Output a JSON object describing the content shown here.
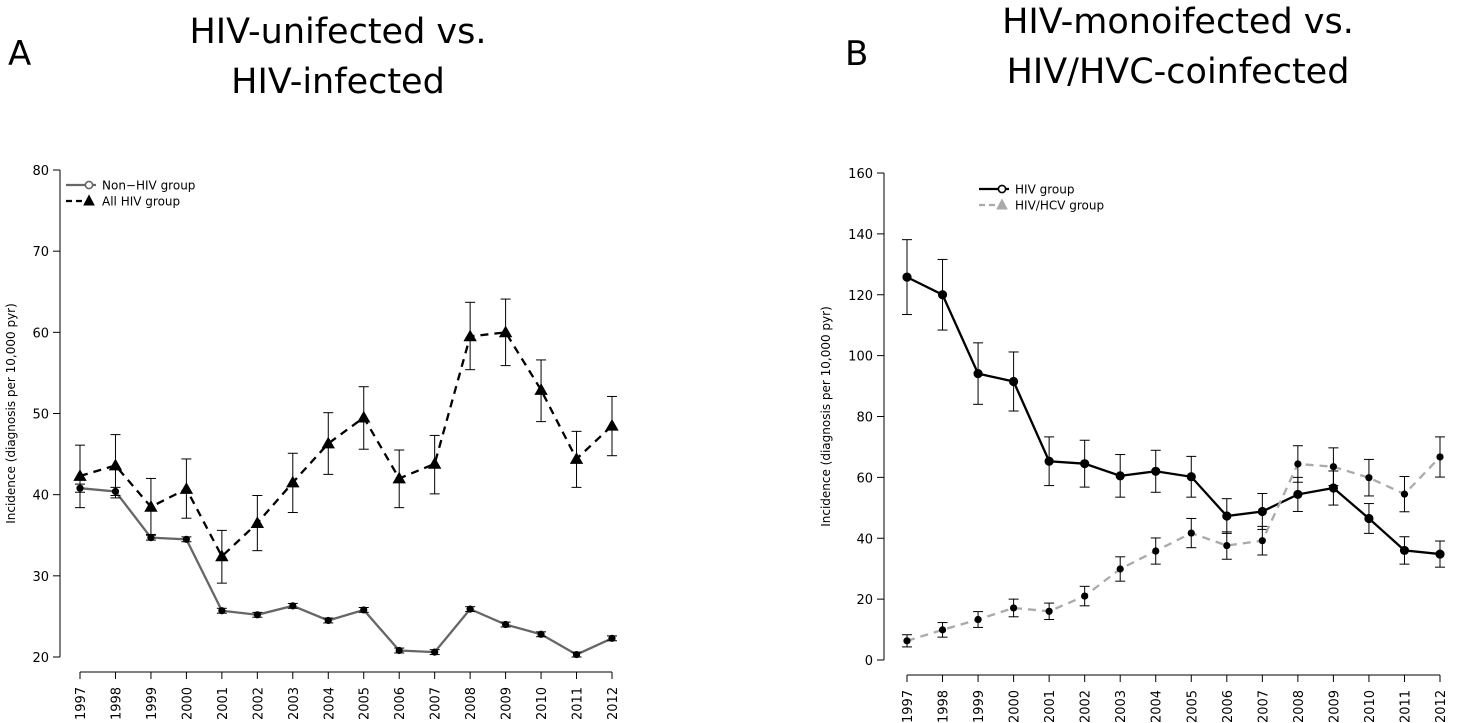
{
  "chart_data": [
    {
      "panel_label": "A",
      "type": "line",
      "title": "HIV-unifected vs.\nHIV-infected",
      "ylabel": "Incidence (diagnosis per 10,000 pyr)",
      "xlabel": "",
      "ylim": [
        20,
        80
      ],
      "yticks": [
        20,
        30,
        40,
        50,
        60,
        70,
        80
      ],
      "x": [
        "1997",
        "1998",
        "1999",
        "2000",
        "2001",
        "2002",
        "2003",
        "2004",
        "2005",
        "2006",
        "2007",
        "2008",
        "2009",
        "2010",
        "2011",
        "2012"
      ],
      "legend_position": "top-left",
      "series": [
        {
          "name": "Non−HIV group",
          "style": "solid",
          "marker": "circle",
          "color": "#666666",
          "values": [
            40.8,
            40.4,
            34.7,
            34.5,
            25.7,
            25.2,
            26.3,
            24.5,
            25.8,
            20.8,
            20.6,
            25.9,
            24.0,
            22.8,
            20.3,
            22.3
          ],
          "lower": [
            40.3,
            39.9,
            34.4,
            34.2,
            25.4,
            24.9,
            26.0,
            24.2,
            25.5,
            20.5,
            20.3,
            25.6,
            23.7,
            22.5,
            20.0,
            22.0
          ],
          "upper": [
            41.3,
            40.9,
            35.0,
            34.8,
            26.0,
            25.5,
            26.6,
            24.8,
            26.1,
            21.1,
            20.9,
            26.2,
            24.3,
            23.1,
            20.6,
            22.6
          ]
        },
        {
          "name": "All HIV group",
          "style": "dashed",
          "marker": "triangle",
          "color": "#000000",
          "values": [
            42.3,
            43.6,
            38.5,
            40.7,
            32.4,
            36.5,
            41.5,
            46.3,
            49.5,
            42.0,
            43.8,
            59.5,
            60.0,
            52.9,
            44.4,
            48.5
          ],
          "lower": [
            38.4,
            39.6,
            35.1,
            37.1,
            29.1,
            33.1,
            37.8,
            42.5,
            45.6,
            38.4,
            40.1,
            55.4,
            55.9,
            49.0,
            40.9,
            44.8
          ],
          "upper": [
            46.1,
            47.4,
            42.0,
            44.4,
            35.6,
            39.9,
            45.1,
            50.1,
            53.3,
            45.5,
            47.3,
            63.7,
            64.1,
            56.6,
            47.8,
            52.1
          ]
        }
      ]
    },
    {
      "panel_label": "B",
      "type": "line",
      "title": "HIV-monoifected vs.\nHIV/HVC-coinfected",
      "ylabel": "Incidence (diagnosis per 10,000 pyr)",
      "xlabel": "",
      "ylim": [
        0,
        160
      ],
      "yticks": [
        0,
        20,
        40,
        60,
        80,
        100,
        120,
        140,
        160
      ],
      "x": [
        "1997",
        "1998",
        "1999",
        "2000",
        "2001",
        "2002",
        "2003",
        "2004",
        "2005",
        "2006",
        "2007",
        "2008",
        "2009",
        "2010",
        "2011",
        "2012"
      ],
      "legend_position": "top-left",
      "series": [
        {
          "name": "HIV group",
          "style": "solid",
          "marker": "circle",
          "color": "#000000",
          "values": [
            125.8,
            120.0,
            94.1,
            91.5,
            65.3,
            64.5,
            60.5,
            62.0,
            60.2,
            47.3,
            48.8,
            54.4,
            56.5,
            46.5,
            36.0,
            34.8
          ],
          "lower": [
            113.5,
            108.4,
            84.0,
            81.8,
            57.3,
            56.8,
            53.5,
            55.1,
            53.5,
            41.6,
            42.9,
            48.8,
            50.9,
            41.6,
            31.5,
            30.5
          ],
          "upper": [
            138.1,
            131.6,
            104.2,
            101.2,
            73.3,
            72.2,
            67.5,
            68.9,
            66.9,
            53.0,
            54.7,
            60.0,
            62.1,
            51.4,
            40.5,
            39.1
          ]
        },
        {
          "name": "HIV/HCV group",
          "style": "dashed",
          "marker": "triangle",
          "color": "#aaaaaa",
          "values": [
            6.3,
            9.9,
            13.3,
            17.1,
            16.0,
            21.0,
            29.9,
            35.8,
            41.7,
            37.6,
            39.2,
            64.4,
            63.5,
            59.9,
            54.5,
            66.7
          ],
          "lower": [
            4.3,
            7.5,
            10.7,
            14.2,
            13.3,
            17.8,
            25.9,
            31.5,
            36.9,
            33.1,
            34.5,
            58.4,
            57.3,
            53.9,
            48.7,
            60.1
          ],
          "upper": [
            8.3,
            12.3,
            15.9,
            20.0,
            18.7,
            24.2,
            33.9,
            40.1,
            46.5,
            42.1,
            43.9,
            70.4,
            69.7,
            65.9,
            60.3,
            73.3
          ]
        }
      ]
    }
  ]
}
